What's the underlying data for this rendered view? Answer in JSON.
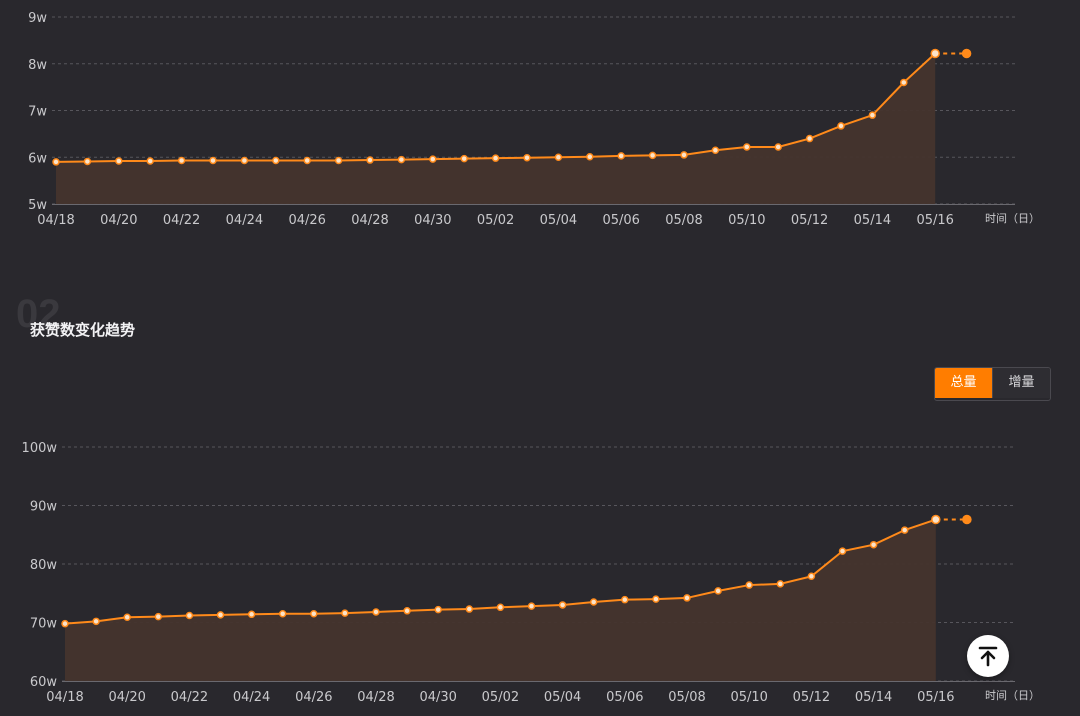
{
  "charts": {
    "chart_a": {
      "y_ticks": [
        "9w",
        "8w",
        "7w",
        "6w",
        "5w"
      ],
      "x_ticks": [
        "04/18",
        "04/20",
        "04/22",
        "04/24",
        "04/26",
        "04/28",
        "04/30",
        "05/02",
        "05/04",
        "05/06",
        "05/08",
        "05/10",
        "05/12",
        "05/14",
        "05/16"
      ],
      "x_axis_label": "时间（日）"
    },
    "chart_b": {
      "y_ticks": [
        "100w",
        "90w",
        "80w",
        "70w",
        "60w"
      ],
      "x_ticks": [
        "04/18",
        "04/20",
        "04/22",
        "04/24",
        "04/26",
        "04/28",
        "04/30",
        "05/02",
        "05/04",
        "05/06",
        "05/08",
        "05/10",
        "05/12",
        "05/14",
        "05/16"
      ],
      "x_axis_label": "时间（日）"
    }
  },
  "section": {
    "number": "02",
    "title": "获赞数变化趋势"
  },
  "toggle": {
    "total_label": "总量",
    "increment_label": "增量",
    "selected": "总量"
  },
  "back_to_top": {
    "icon": "arrow-up-to-top-icon"
  },
  "colors": {
    "line": "#ff8a1a",
    "area": "#45342d",
    "background": "#29282d",
    "accent": "#ff7d00"
  },
  "chart_data": [
    {
      "type": "area",
      "x": [
        "04/18",
        "04/19",
        "04/20",
        "04/21",
        "04/22",
        "04/23",
        "04/24",
        "04/25",
        "04/26",
        "04/27",
        "04/28",
        "04/29",
        "04/30",
        "05/01",
        "05/02",
        "05/03",
        "05/04",
        "05/05",
        "05/06",
        "05/07",
        "05/08",
        "05/09",
        "05/10",
        "05/11",
        "05/12",
        "05/13",
        "05/14",
        "05/15",
        "05/16",
        "05/17"
      ],
      "series": [
        {
          "values": [
            5.9,
            5.91,
            5.92,
            5.92,
            5.93,
            5.93,
            5.93,
            5.93,
            5.93,
            5.93,
            5.94,
            5.95,
            5.96,
            5.97,
            5.98,
            5.99,
            6.0,
            6.01,
            6.03,
            6.04,
            6.05,
            6.15,
            6.22,
            6.22,
            6.4,
            6.67,
            6.9,
            7.6,
            8.22,
            8.22
          ]
        }
      ],
      "ylim": [
        5,
        9
      ],
      "y_unit": "w",
      "xlabel": "时间（日）",
      "projected_last_point": true,
      "grid": true
    },
    {
      "type": "area",
      "x": [
        "04/18",
        "04/19",
        "04/20",
        "04/21",
        "04/22",
        "04/23",
        "04/24",
        "04/25",
        "04/26",
        "04/27",
        "04/28",
        "04/29",
        "04/30",
        "05/01",
        "05/02",
        "05/03",
        "05/04",
        "05/05",
        "05/06",
        "05/07",
        "05/08",
        "05/09",
        "05/10",
        "05/11",
        "05/12",
        "05/13",
        "05/14",
        "05/15",
        "05/16",
        "05/17"
      ],
      "series": [
        {
          "values": [
            69.8,
            70.2,
            70.9,
            71.0,
            71.2,
            71.3,
            71.4,
            71.5,
            71.5,
            71.6,
            71.8,
            72.0,
            72.2,
            72.3,
            72.6,
            72.8,
            73.0,
            73.5,
            73.9,
            74.0,
            74.2,
            75.4,
            76.4,
            76.6,
            77.9,
            82.2,
            83.3,
            85.8,
            87.6,
            87.6
          ]
        }
      ],
      "ylim": [
        60,
        100
      ],
      "y_unit": "w",
      "xlabel": "时间（日）",
      "projected_last_point": true,
      "grid": true
    }
  ]
}
